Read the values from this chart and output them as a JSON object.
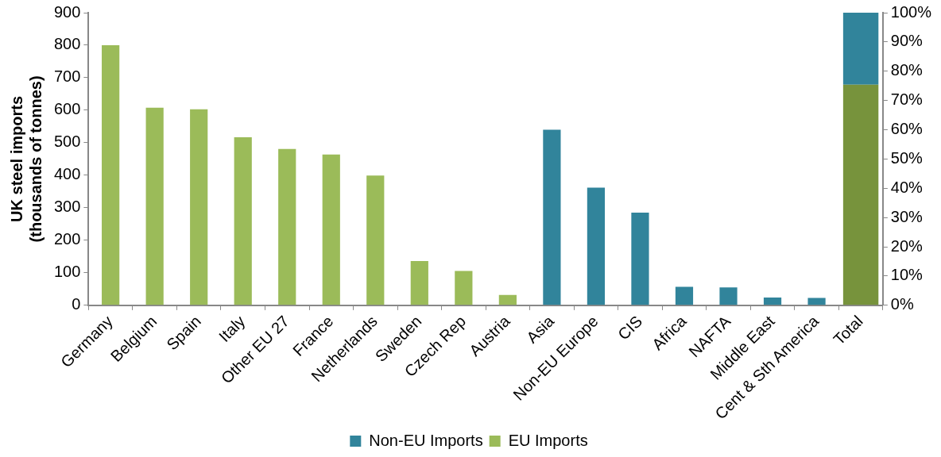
{
  "chart_data": {
    "type": "bar",
    "ylabel": "UK steel imports\n(thousands of tonnes)",
    "categories": [
      "Germany",
      "Belgium",
      "Spain",
      "Italy",
      "Other EU 27",
      "France",
      "Netherlands",
      "Sweden",
      "Czech Rep",
      "Austria",
      "Asia",
      "Non-EU Europe",
      "CIS",
      "Africa",
      "NAFTA",
      "Middle East",
      "Cent & Sth America",
      "Total"
    ],
    "series": [
      {
        "name": "Non-EU Imports",
        "color": "#31849b",
        "values": [
          null,
          null,
          null,
          null,
          null,
          null,
          null,
          null,
          null,
          null,
          540,
          362,
          285,
          57,
          55,
          24,
          23,
          null
        ]
      },
      {
        "name": "EU Imports",
        "color": "#9bbb59",
        "values": [
          800,
          608,
          603,
          517,
          481,
          464,
          399,
          136,
          106,
          32,
          null,
          null,
          null,
          null,
          null,
          null,
          null,
          null
        ]
      },
      {
        "color": "#77933c",
        "axis": "y2",
        "values": [
          null,
          null,
          null,
          null,
          null,
          null,
          null,
          null,
          null,
          null,
          null,
          null,
          null,
          null,
          null,
          null,
          null,
          75.4
        ]
      },
      {
        "color": "#31849b",
        "axis": "y2",
        "values": [
          null,
          null,
          null,
          null,
          null,
          null,
          null,
          null,
          null,
          null,
          null,
          null,
          null,
          null,
          null,
          null,
          null,
          24.6
        ]
      }
    ],
    "stacked": true,
    "ylim": [
      0,
      900
    ],
    "yticks": [
      0,
      100,
      200,
      300,
      400,
      500,
      600,
      700,
      800,
      900
    ],
    "y2lim": [
      0,
      100
    ],
    "y2ticks": [
      {
        "value": 0,
        "label": "0%"
      },
      {
        "value": 10,
        "label": "10%"
      },
      {
        "value": 20,
        "label": "20%"
      },
      {
        "value": 30,
        "label": "30%"
      },
      {
        "value": 40,
        "label": "40%"
      },
      {
        "value": 50,
        "label": "50%"
      },
      {
        "value": 60,
        "label": "60%"
      },
      {
        "value": 70,
        "label": "70%"
      },
      {
        "value": 80,
        "label": "80%"
      },
      {
        "value": 90,
        "label": "90%"
      },
      {
        "value": 100,
        "label": "100%"
      }
    ],
    "grid": false,
    "legend": "bottom"
  }
}
